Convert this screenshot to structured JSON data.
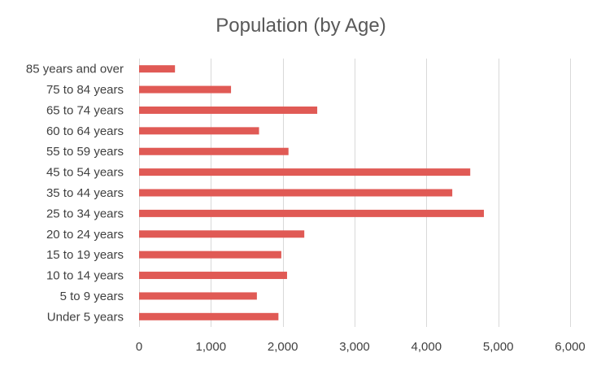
{
  "chart_data": {
    "type": "bar",
    "orientation": "horizontal",
    "title": "Population (by Age)",
    "xlabel": "",
    "ylabel": "",
    "categories": [
      "85 years and over",
      "75 to 84 years",
      "65 to 74 years",
      "60 to 64 years",
      "55 to 59 years",
      "45 to 54 years",
      "35 to 44 years",
      "25 to 34 years",
      "20 to 24 years",
      "15 to 19 years",
      "10 to 14 years",
      "5 to 9 years",
      "Under 5 years"
    ],
    "values": [
      500,
      1280,
      2480,
      1670,
      2080,
      4610,
      4360,
      4800,
      2300,
      1980,
      2060,
      1640,
      1940
    ],
    "xlim": [
      0,
      6000
    ],
    "x_ticks": [
      0,
      1000,
      2000,
      3000,
      4000,
      5000,
      6000
    ],
    "x_tick_labels": [
      "0",
      "1,000",
      "2,000",
      "3,000",
      "4,000",
      "5,000",
      "6,000"
    ],
    "grid": "vertical",
    "legend": "none",
    "bar_color": "#e05a55",
    "grid_color": "#d9d9d9",
    "text_color": "#404040",
    "title_color": "#595959"
  }
}
